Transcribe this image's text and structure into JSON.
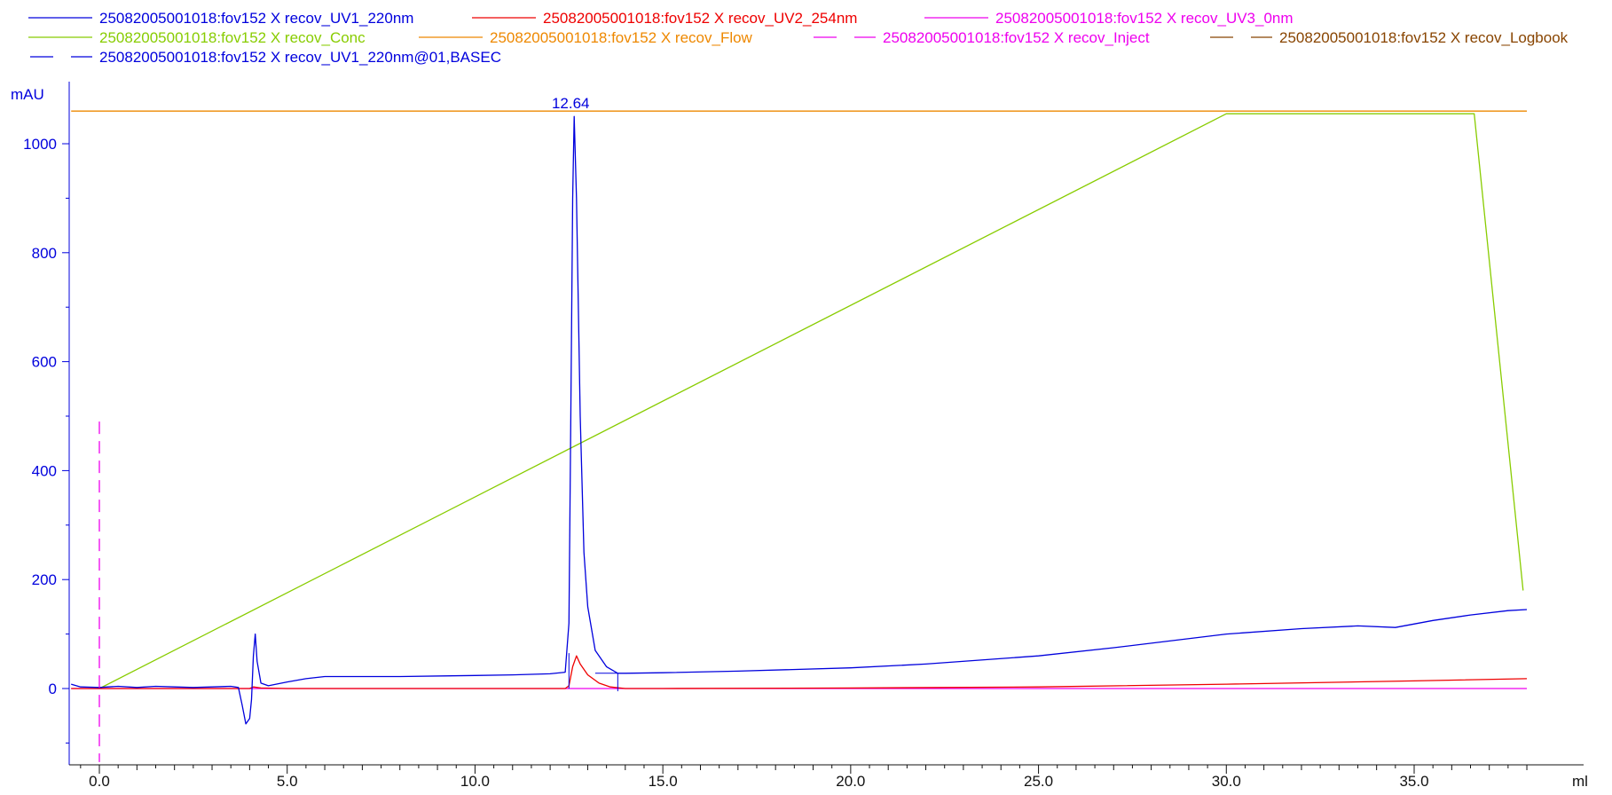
{
  "chart_data": {
    "type": "line",
    "title": "",
    "xlabel": "ml",
    "ylabel": "mAU",
    "xlim": [
      -0.8,
      38.0
    ],
    "ylim": [
      -140,
      1100
    ],
    "x_ticks": [
      0.0,
      5.0,
      10.0,
      15.0,
      20.0,
      25.0,
      30.0,
      35.0
    ],
    "x_tick_labels": [
      "0.0",
      "5.0",
      "10.0",
      "15.0",
      "20.0",
      "25.0",
      "30.0",
      "35.0"
    ],
    "y_ticks": [
      0,
      200,
      400,
      600,
      800,
      1000
    ],
    "y_tick_labels": [
      "0",
      "200",
      "400",
      "600",
      "800",
      "1000"
    ],
    "grid": false,
    "legend_placement": "top",
    "legend": [
      {
        "label": "25082005001018:fov152 X recov_UV1_220nm",
        "color": "#0000dd",
        "dash": "solid"
      },
      {
        "label": "25082005001018:fov152 X recov_UV2_254nm",
        "color": "#ee0000",
        "dash": "solid"
      },
      {
        "label": "25082005001018:fov152 X recov_UV3_0nm",
        "color": "#ee00ee",
        "dash": "solid"
      },
      {
        "label": "25082005001018:fov152 X recov_Conc",
        "color": "#88cc00",
        "dash": "solid"
      },
      {
        "label": "25082005001018:fov152 X recov_Flow",
        "color": "#ee8800",
        "dash": "solid"
      },
      {
        "label": "25082005001018:fov152 X recov_Inject",
        "color": "#ee00ee",
        "dash": "dash"
      },
      {
        "label": "25082005001018:fov152 X recov_Logbook",
        "color": "#884400",
        "dash": "dash"
      },
      {
        "label": "25082005001018:fov152 X recov_UV1_220nm@01,BASEC",
        "color": "#0000dd",
        "dash": "dash"
      }
    ],
    "series": [
      {
        "name": "25082005001018:fov152 X recov_UV1_220nm",
        "color": "#0000dd",
        "x": [
          -0.75,
          -0.5,
          0.0,
          0.5,
          1.0,
          1.5,
          2.0,
          2.5,
          3.0,
          3.5,
          3.7,
          3.8,
          3.9,
          4.0,
          4.05,
          4.1,
          4.15,
          4.2,
          4.3,
          4.5,
          5.0,
          5.5,
          6.0,
          8.0,
          10.0,
          11.0,
          12.0,
          12.4,
          12.5,
          12.55,
          12.6,
          12.64,
          12.7,
          12.8,
          12.9,
          13.0,
          13.2,
          13.5,
          13.8,
          14.0,
          15.0,
          17.0,
          20.0,
          22.0,
          25.0,
          27.0,
          30.0,
          32.0,
          33.5,
          34.5,
          35.5,
          36.5,
          37.5,
          38.0
        ],
        "y": [
          8,
          3,
          2,
          4,
          2,
          4,
          3,
          2,
          3,
          4,
          2,
          -30,
          -65,
          -55,
          -20,
          60,
          100,
          50,
          10,
          5,
          12,
          18,
          22,
          22,
          24,
          25,
          27,
          30,
          120,
          500,
          900,
          1050,
          900,
          500,
          250,
          150,
          70,
          40,
          28,
          28,
          29,
          32,
          38,
          45,
          60,
          75,
          100,
          110,
          115,
          112,
          125,
          135,
          143,
          145
        ]
      },
      {
        "name": "25082005001018:fov152 X recov_UV2_254nm",
        "color": "#ee0000",
        "x": [
          -0.75,
          0.0,
          4.0,
          4.1,
          4.3,
          5.0,
          10.0,
          12.0,
          12.4,
          12.5,
          12.6,
          12.7,
          12.8,
          13.0,
          13.3,
          13.6,
          14.0,
          15.0,
          20.0,
          25.0,
          30.0,
          35.0,
          38.0
        ],
        "y": [
          0,
          0,
          0,
          3,
          1,
          0,
          0,
          0,
          0,
          5,
          40,
          60,
          45,
          25,
          10,
          3,
          0,
          0,
          1,
          3,
          8,
          14,
          18
        ]
      },
      {
        "name": "25082005001018:fov152 X recov_UV3_0nm",
        "color": "#ee00ee",
        "x": [
          -0.75,
          38.0
        ],
        "y": [
          0,
          0
        ]
      },
      {
        "name": "25082005001018:fov152 X recov_Conc",
        "color": "#88cc00",
        "x": [
          0.0,
          30.0,
          36.6,
          37.9
        ],
        "y": [
          0,
          1055,
          1055,
          180
        ]
      },
      {
        "name": "25082005001018:fov152 X recov_Flow",
        "color": "#ee8800",
        "x": [
          -0.75,
          38.0
        ],
        "y": [
          1060,
          1060
        ]
      }
    ],
    "markers": [
      {
        "type": "inject",
        "x": 0.0,
        "y_top": 490,
        "y_bottom": -135,
        "color": "#ee00ee"
      }
    ],
    "annotations": [
      {
        "text": "12.64",
        "x": 12.64,
        "y": 1062,
        "color": "#0000dd"
      }
    ],
    "fraction_marks": [
      {
        "x": 12.5,
        "y_top": 65,
        "y_bottom": 0
      },
      {
        "x": 13.8,
        "y_top": 28,
        "y_bottom": -5
      }
    ]
  }
}
